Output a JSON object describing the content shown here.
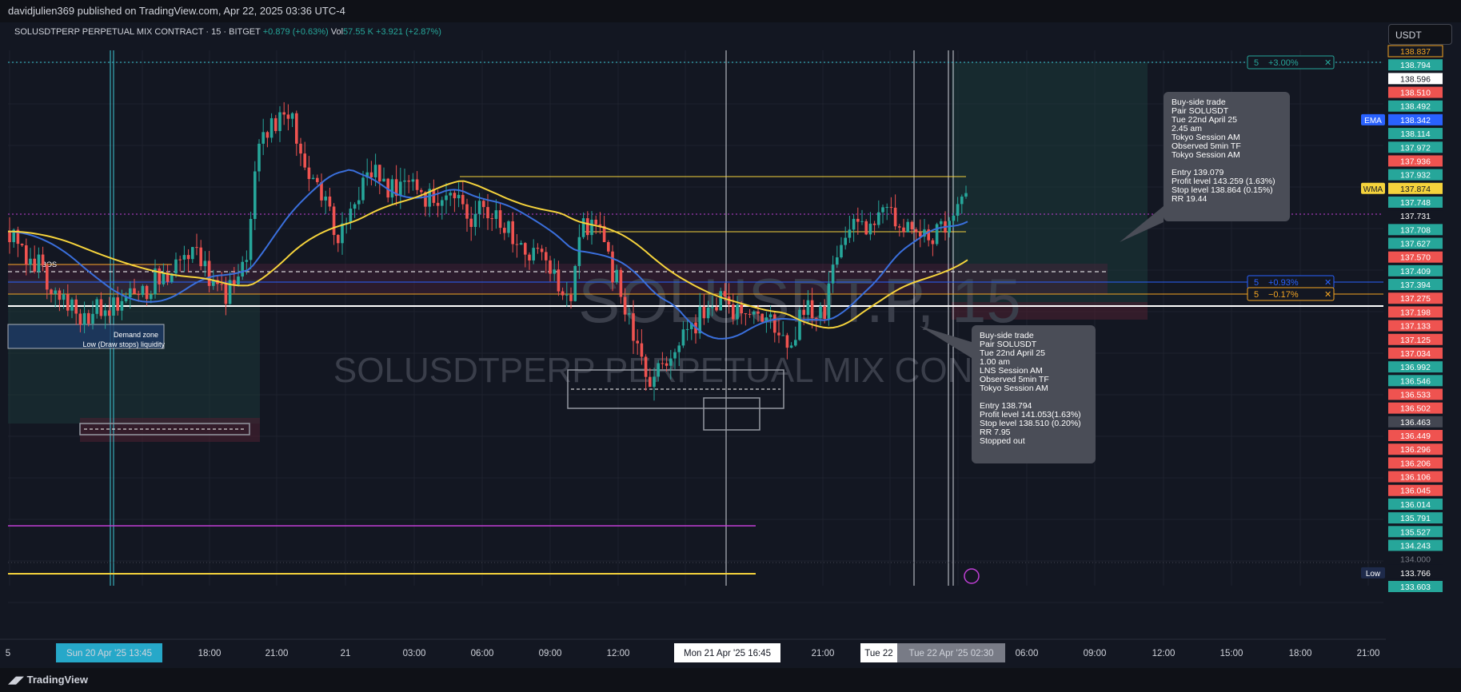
{
  "header": {
    "publisher_text": "davidjulien369 published on TradingView.com, Apr 22, 2025 03:36 UTC-4"
  },
  "symbol_info": {
    "title": "SOLUSDTPERP PERPETUAL MIX CONTRACT · 15 · BITGET",
    "change": "+0.879 (+0.63%)",
    "vol_label": "Vol",
    "vol_value": "57.55 K",
    "vol_change": "+3.921 (+2.87%)"
  },
  "currency_button": "USDT",
  "watermark": {
    "big": "SOLUSDT.P, 15",
    "small": "SOLUSDTPERP PERPETUAL MIX CONTRACT"
  },
  "footer": {
    "brand": "TradingView"
  },
  "colors": {
    "bg": "#131722",
    "up": "#26a69a",
    "down": "#ef5350",
    "ema": "#3a6fdc",
    "wma": "#f5d33c",
    "grid": "#1e222d",
    "cyan": "#3dc9d6",
    "magenta": "#c13fd6"
  },
  "annotations": {
    "bos_label": "BOS",
    "demand_label": "Demand zone",
    "liquidity_label": "Low (Draw stops) liquidity",
    "trade1": [
      "Buy-side trade",
      "Pair SOLUSDT",
      "Tue 22nd April 25",
      "2.45 am",
      "Tokyo Session AM",
      "Observed 5min TF",
      "Tokyo Session AM",
      "",
      "Entry 139.079",
      "Profit level 143.259 (1.63%)",
      "Stop level 138.864 (0.15%)",
      "RR 19.44"
    ],
    "trade2": [
      "Buy-side trade",
      "Pair SOLUSDT",
      "Tue 22nd April 25",
      "1.00 am",
      "LNS Session AM",
      "Observed 5min TF",
      "Tokyo Session AM",
      "",
      "Entry 138.794",
      "Profit level 141.053(1.63%)",
      "Stop level 138.510 (0.20%)",
      "RR 7.95",
      "Stopped out"
    ],
    "pos_tags": [
      {
        "qty": "5",
        "pct": "+3.00%",
        "color": "#26a69a",
        "price": 138.83
      },
      {
        "qty": "5",
        "pct": "+0.93%",
        "color": "#2962ff",
        "price": 137.394
      },
      {
        "qty": "5",
        "pct": "−0.17%",
        "color": "#f5a623",
        "price": 137.3
      }
    ]
  },
  "chart_data": {
    "type": "candlestick",
    "title": "SOLUSDTPERP PERPETUAL MIX CONTRACT · 15 · BITGET",
    "currency": "USDT",
    "price_labels": [
      {
        "text": "138.837",
        "color": "#131722",
        "border": "#f5a623",
        "fg": "#f5a623"
      },
      {
        "text": "138.794",
        "color": "#26a69a"
      },
      {
        "text": "138.596",
        "color": "#ffffff",
        "fg": "#131722"
      },
      {
        "text": "138.510",
        "color": "#ef5350"
      },
      {
        "text": "138.492",
        "color": "#26a69a"
      },
      {
        "text": "138.342",
        "color": "#2962ff",
        "tag": "EMA",
        "tagcolor": "#2962ff"
      },
      {
        "text": "138.114",
        "color": "#26a69a"
      },
      {
        "text": "137.972",
        "color": "#26a69a"
      },
      {
        "text": "137.936",
        "color": "#ef5350"
      },
      {
        "text": "137.932",
        "color": "#26a69a"
      },
      {
        "text": "137.874",
        "color": "#f5d33c",
        "fg": "#131722",
        "tag": "WMA",
        "tagcolor": "#f5d33c"
      },
      {
        "text": "137.748",
        "color": "#26a69a"
      },
      {
        "text": "137.731",
        "color": "#131722"
      },
      {
        "text": "137.708",
        "color": "#26a69a"
      },
      {
        "text": "137.627",
        "color": "#26a69a"
      },
      {
        "text": "137.570",
        "color": "#ef5350"
      },
      {
        "text": "137.409",
        "color": "#26a69a"
      },
      {
        "text": "137.394",
        "color": "#26a69a"
      },
      {
        "text": "137.275",
        "color": "#ef5350"
      },
      {
        "text": "137.198",
        "color": "#ef5350"
      },
      {
        "text": "137.133",
        "color": "#ef5350"
      },
      {
        "text": "137.125",
        "color": "#ef5350"
      },
      {
        "text": "137.034",
        "color": "#ef5350"
      },
      {
        "text": "136.992",
        "color": "#26a69a"
      },
      {
        "text": "136.546",
        "color": "#26a69a"
      },
      {
        "text": "136.533",
        "color": "#ef5350"
      },
      {
        "text": "136.502",
        "color": "#ef5350"
      },
      {
        "text": "136.463",
        "color": "#434651"
      },
      {
        "text": "136.449",
        "color": "#ef5350"
      },
      {
        "text": "136.296",
        "color": "#ef5350"
      },
      {
        "text": "136.206",
        "color": "#ef5350"
      },
      {
        "text": "136.106",
        "color": "#ef5350"
      },
      {
        "text": "136.045",
        "color": "#ef5350"
      },
      {
        "text": "136.014",
        "color": "#26a69a"
      },
      {
        "text": "135.791",
        "color": "#26a69a"
      },
      {
        "text": "135.527",
        "color": "#26a69a"
      },
      {
        "text": "134.243",
        "color": "#26a69a"
      },
      {
        "text": "134.000",
        "color": "#131722",
        "fg": "#787b86"
      },
      {
        "text": "133.766",
        "color": "#131722",
        "tag": "Low",
        "tagcolor": "#1e2a4a"
      },
      {
        "text": "133.603",
        "color": "#26a69a"
      }
    ],
    "x_ticks": [
      "5",
      "Sun 20 Apr '25   13:45",
      "18:00",
      "21:00",
      "21",
      "03:00",
      "06:00",
      "09:00",
      "12:00",
      "Mon 21 Apr '25   16:45",
      "21:00",
      "Tue 22",
      "Tue 22 Apr '25   02:30",
      "06:00",
      "09:00",
      "12:00",
      "15:00",
      "18:00",
      "21:00"
    ],
    "ylim": [
      133.0,
      139.8
    ],
    "series": [
      {
        "name": "EMA"
      },
      {
        "name": "WMA"
      }
    ]
  }
}
